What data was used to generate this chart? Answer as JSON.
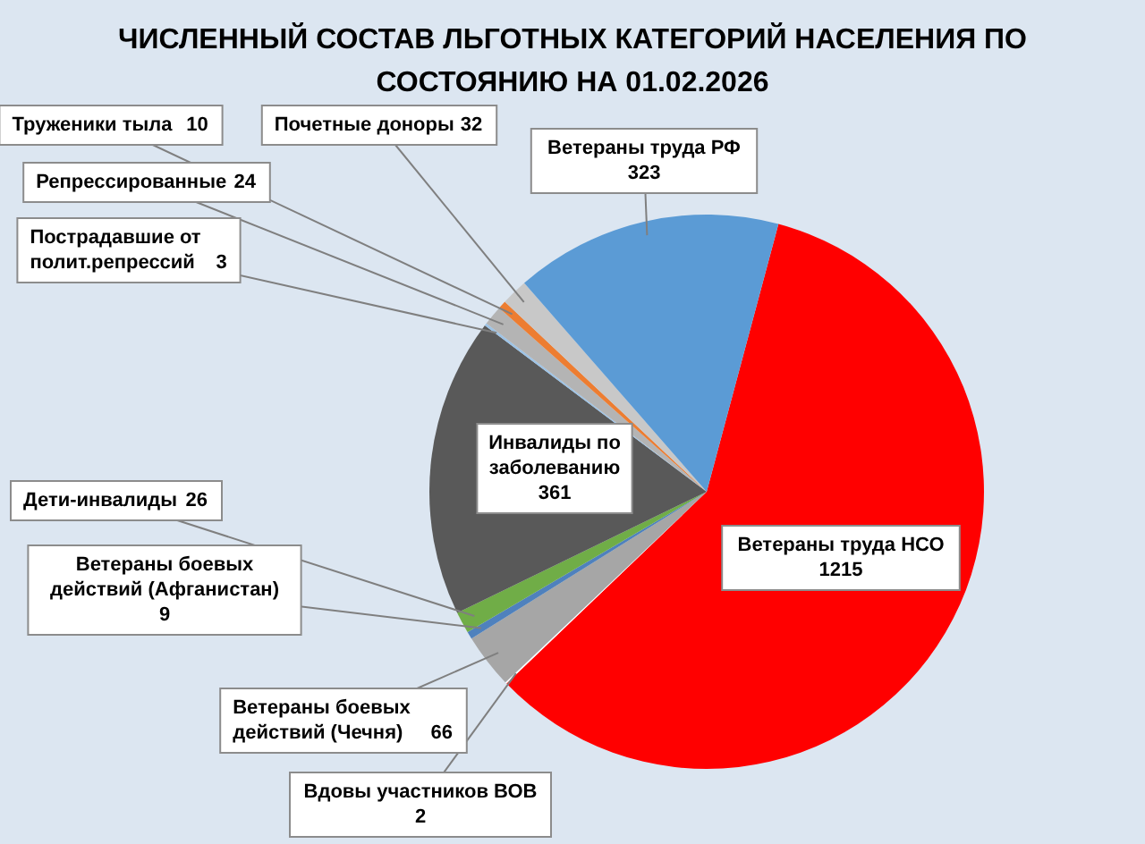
{
  "chart_data": {
    "type": "pie",
    "title": "ЧИСЛЕННЫЙ СОСТАВ ЛЬГОТНЫХ КАТЕГОРИЙ НАСЕЛЕНИЯ   ПО СОСТОЯНИЮ НА 01.02.2026",
    "categories": [
      "Ветераны труда НСО",
      "Вдовы участников ВОВ",
      "Ветераны боевых действий (Чечня)",
      "Ветераны боевых действий (Афганистан)",
      "Дети-инвалиды",
      "Инвалиды по заболеванию",
      "Пострадавшие от полит.репрессий",
      "Репрессированные",
      "Труженики тыла",
      "Почетные доноры",
      "Ветераны труда РФ"
    ],
    "values": [
      1215,
      2,
      66,
      9,
      26,
      361,
      3,
      24,
      10,
      32,
      323
    ],
    "colors": [
      "#ff0000",
      "#ffffff",
      "#a6a6a6",
      "#4f81bd",
      "#70ad47",
      "#595959",
      "#9dc3e6",
      "#b4b4b4",
      "#ed7d31",
      "#c8c8c8",
      "#5b9bd5"
    ],
    "data_labels": true
  }
}
